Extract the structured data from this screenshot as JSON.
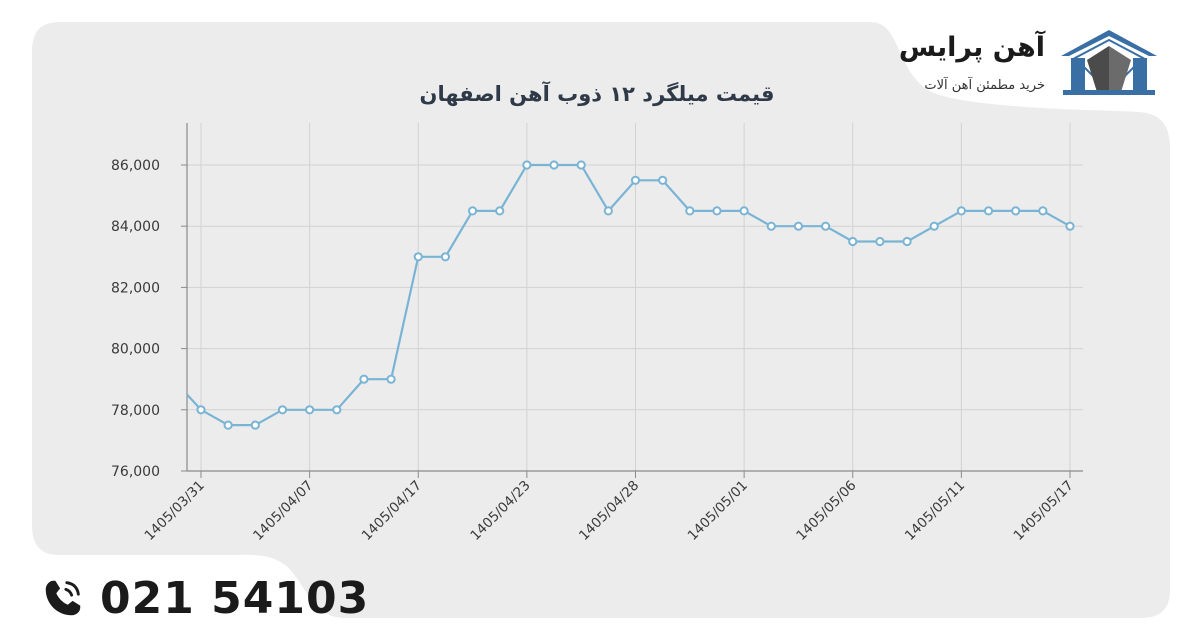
{
  "brand": {
    "name": "آهن پرایس",
    "tagline": "خرید مطمئن آهن آلات",
    "logo_color": "#3a6fa5"
  },
  "contact": {
    "phone": "021 54103"
  },
  "colors": {
    "card_background": "#ececec",
    "line": "#7ab4d4",
    "grid": "#d2d2d2",
    "axis": "#8a8a8a"
  },
  "chart_data": {
    "type": "line",
    "title": "قیمت میلگرد ۱۲ ذوب آهن اصفهان",
    "xlabel": "",
    "ylabel": "",
    "ylim": [
      76000,
      86000
    ],
    "y_ticks": [
      76000,
      78000,
      80000,
      82000,
      84000,
      86000
    ],
    "y_tick_labels": [
      "76,000",
      "78,000",
      "80,000",
      "82,000",
      "84,000",
      "86,000"
    ],
    "x_tick_labels": [
      "1405/03/31",
      "1405/04/07",
      "1405/04/17",
      "1405/04/23",
      "1405/04/28",
      "1405/05/01",
      "1405/05/06",
      "1405/05/11",
      "1405/05/17"
    ],
    "x_tick_positions": [
      0,
      4,
      8,
      12,
      16,
      20,
      24,
      28,
      32
    ],
    "grid": true,
    "legend": "none",
    "lead_in_value": 78500,
    "series": [
      {
        "values": [
          78000,
          77500,
          77500,
          78000,
          78000,
          78000,
          79000,
          79000,
          83000,
          83000,
          84500,
          84500,
          86000,
          86000,
          86000,
          84500,
          85500,
          85500,
          84500,
          84500,
          84500,
          84000,
          84000,
          84000,
          83500,
          83500,
          83500,
          84000,
          84500,
          84500,
          84500,
          84500,
          84000
        ]
      }
    ]
  }
}
